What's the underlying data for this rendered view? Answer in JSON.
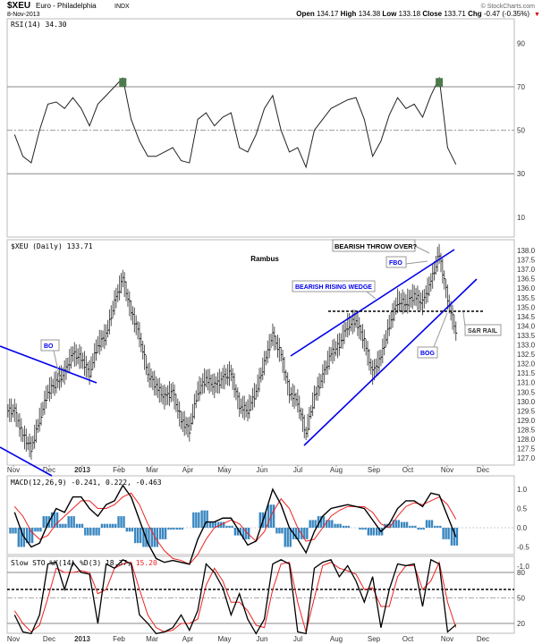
{
  "header": {
    "symbol": "$XEU",
    "name": "Euro - Philadelphia",
    "exchange": "INDX",
    "date": "8-Nov-2013",
    "copyright": "© StockCharts.com",
    "open_label": "Open",
    "open": "134.17",
    "high_label": "High",
    "high": "134.38",
    "low_label": "Low",
    "low": "133.18",
    "close_label": "Close",
    "close": "133.71",
    "chg_label": "Chg",
    "chg": "-0.47 (-0.35%)",
    "down_color": "#cc0000"
  },
  "annotations": {
    "author": "Rambus",
    "bearish_throw_over": "BEARISH THROW OVER?",
    "fbo": "FBO",
    "wedge": "BEARISH RISING WEDGE",
    "sr_rail": "S&R RAIL",
    "bog": "BOG",
    "bo": "BO",
    "line_color": "#0000ee"
  },
  "chart_data": [
    {
      "type": "line",
      "title": "RSI(14) 34.30",
      "label": "RSI(14)",
      "last": "34.30",
      "ylim": [
        0,
        100
      ],
      "yticks": [
        "90",
        "70",
        "50",
        "30",
        "10"
      ],
      "reference_lines": [
        70,
        50,
        30
      ],
      "overbought_fill": "#4c7a4c",
      "values": [
        48,
        38,
        35,
        50,
        62,
        63,
        60,
        65,
        60,
        52,
        62,
        66,
        70,
        74,
        55,
        45,
        38,
        38,
        40,
        42,
        36,
        35,
        55,
        58,
        52,
        56,
        58,
        42,
        40,
        48,
        60,
        66,
        50,
        40,
        42,
        33,
        50,
        55,
        60,
        62,
        64,
        65,
        55,
        38,
        45,
        57,
        65,
        60,
        62,
        56,
        66,
        74,
        42,
        34.3
      ]
    },
    {
      "type": "bar",
      "title": "$XEU (Daily) 133.71",
      "label": "$XEU (Daily)",
      "last": "133.71",
      "ylim": [
        126.5,
        138.5
      ],
      "yticks": [
        "138.0",
        "137.5",
        "137.0",
        "136.5",
        "136.0",
        "135.5",
        "135.0",
        "134.5",
        "134.0",
        "133.5",
        "133.0",
        "132.5",
        "132.0",
        "131.5",
        "131.0",
        "130.5",
        "130.0",
        "129.5",
        "129.0",
        "128.5",
        "128.0",
        "127.5",
        "127.0"
      ],
      "x_start": "2012-11-02",
      "x_step": "weekly",
      "xticks": [
        "Nov",
        "Dec",
        "2013",
        "Feb",
        "Mar",
        "Apr",
        "May",
        "Jun",
        "Jul",
        "Aug",
        "Sep",
        "Oct",
        "Nov",
        "Dec"
      ],
      "close": [
        129.5,
        128.2,
        127.5,
        129,
        130.5,
        131,
        131.5,
        132.5,
        132.3,
        131.5,
        133,
        133.5,
        135.2,
        136.5,
        134.8,
        133.5,
        131.5,
        130.8,
        130.2,
        130.5,
        129,
        128.5,
        130.5,
        131.2,
        130.8,
        131.2,
        131.5,
        129.8,
        129.5,
        130.5,
        132,
        133.5,
        132.5,
        130.5,
        130,
        128.3,
        130.2,
        131.3,
        132.5,
        133,
        134,
        134.3,
        133.2,
        131.5,
        132.3,
        134,
        135.3,
        135.2,
        135.6,
        135.2,
        136.3,
        137.8,
        135.5,
        133.71
      ]
    },
    {
      "type": "line",
      "title": "MACD(12,26,9) -0.241, 0.222, -0.463",
      "label": "MACD(12,26,9)",
      "macd_last": "-0.241",
      "signal_last": "0.222",
      "hist_last": "-0.463",
      "ylim": [
        -1.2,
        1.3
      ],
      "yticks": [
        "1.0",
        "0.5",
        "0.0",
        "-0.5",
        "-1.0"
      ],
      "macd": [
        0.4,
        -0.2,
        -0.5,
        -0.4,
        0.1,
        0.5,
        0.4,
        0.8,
        0.8,
        0.5,
        0.3,
        0.6,
        0.7,
        1.1,
        0.8,
        0.2,
        -0.4,
        -0.8,
        -0.9,
        -0.85,
        -0.9,
        -0.95,
        -0.3,
        0.15,
        0.15,
        0.25,
        0.25,
        -0.1,
        -0.45,
        -0.35,
        0.3,
        1.0,
        0.6,
        0,
        -0.3,
        -0.65,
        -0.1,
        0.3,
        0.5,
        0.55,
        0.6,
        0.55,
        0.5,
        0.2,
        -0.1,
        0.1,
        0.5,
        0.7,
        0.7,
        0.55,
        0.9,
        0.85,
        0.3,
        -0.241
      ],
      "signal": [
        0.55,
        0.3,
        -0.1,
        -0.3,
        -0.2,
        0.1,
        0.3,
        0.5,
        0.7,
        0.7,
        0.5,
        0.5,
        0.6,
        0.8,
        0.9,
        0.6,
        0.1,
        -0.3,
        -0.6,
        -0.8,
        -0.85,
        -0.95,
        -0.7,
        -0.3,
        0,
        0.1,
        0.2,
        0.1,
        -0.15,
        -0.35,
        -0.1,
        0.4,
        0.75,
        0.5,
        0,
        -0.35,
        -0.3,
        0,
        0.3,
        0.45,
        0.55,
        0.55,
        0.55,
        0.4,
        0.1,
        0,
        0.3,
        0.55,
        0.65,
        0.6,
        0.7,
        0.8,
        0.6,
        0.222
      ],
      "colors": {
        "macd": "#000000",
        "signal": "#ee2222",
        "hist": "#3a87c0"
      }
    },
    {
      "type": "line",
      "title": "Slow STO %K(14) %D(3) 18.37, 15.20",
      "label": "Slow STO %K(14) %D(3)",
      "k_last": "18.37",
      "d_last": "15.20",
      "ylim": [
        0,
        100
      ],
      "yticks": [
        "80",
        "50",
        "20"
      ],
      "reference_lines": [
        80,
        60,
        50,
        20
      ],
      "k": [
        30,
        10,
        8,
        30,
        90,
        92,
        60,
        92,
        80,
        78,
        20,
        90,
        85,
        95,
        90,
        30,
        20,
        8,
        10,
        15,
        30,
        12,
        35,
        90,
        80,
        62,
        30,
        55,
        25,
        8,
        25,
        90,
        95,
        90,
        10,
        8,
        85,
        92,
        95,
        75,
        88,
        70,
        45,
        75,
        15,
        60,
        90,
        88,
        90,
        40,
        95,
        90,
        10,
        18.37
      ],
      "d": [
        35,
        20,
        10,
        18,
        50,
        85,
        80,
        80,
        82,
        80,
        55,
        60,
        85,
        90,
        92,
        60,
        30,
        15,
        10,
        12,
        20,
        20,
        25,
        65,
        85,
        70,
        45,
        45,
        35,
        18,
        15,
        60,
        90,
        92,
        45,
        10,
        50,
        88,
        92,
        85,
        82,
        78,
        60,
        62,
        40,
        40,
        75,
        88,
        88,
        60,
        70,
        92,
        45,
        15.2
      ]
    }
  ]
}
